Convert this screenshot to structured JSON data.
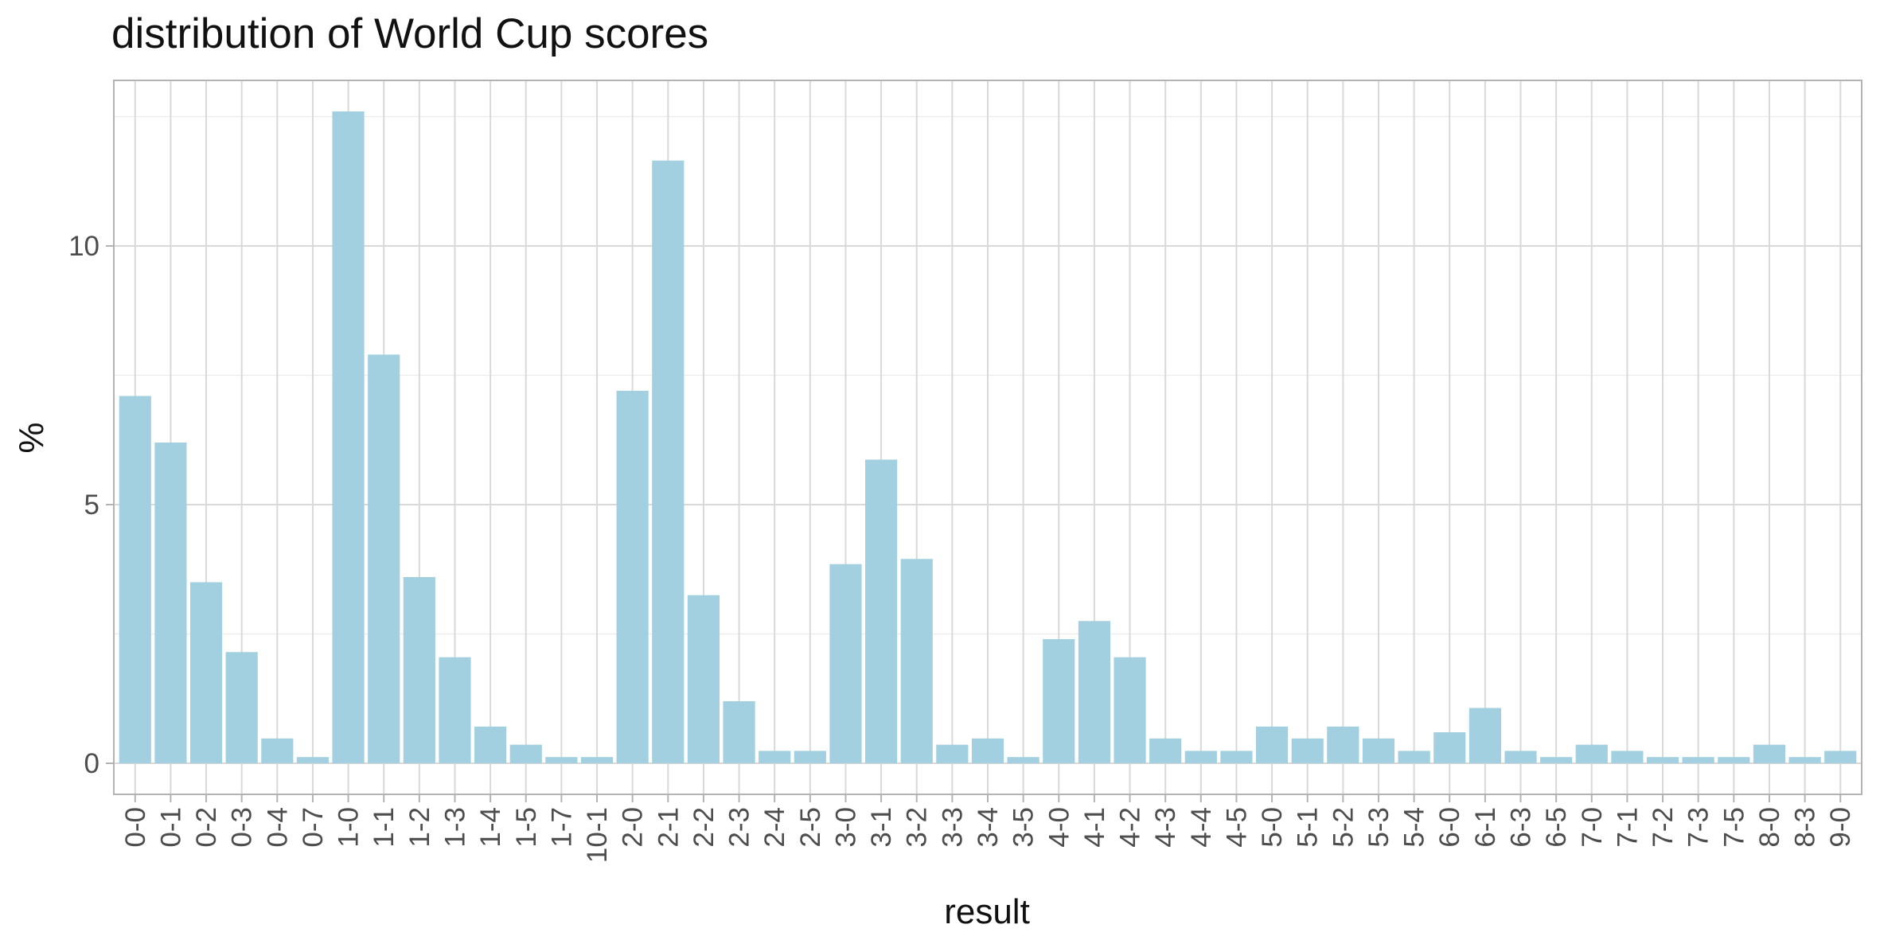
{
  "chart_data": {
    "type": "bar",
    "title": "distribution of World Cup scores",
    "xlabel": "result",
    "ylabel": "%",
    "categories": [
      "0-0",
      "0-1",
      "0-2",
      "0-3",
      "0-4",
      "0-7",
      "1-0",
      "1-1",
      "1-2",
      "1-3",
      "1-4",
      "1-5",
      "1-7",
      "10-1",
      "2-0",
      "2-1",
      "2-2",
      "2-3",
      "2-4",
      "2-5",
      "3-0",
      "3-1",
      "3-2",
      "3-3",
      "3-4",
      "3-5",
      "4-0",
      "4-1",
      "4-2",
      "4-3",
      "4-4",
      "4-5",
      "5-0",
      "5-1",
      "5-2",
      "5-3",
      "5-4",
      "6-0",
      "6-1",
      "6-3",
      "6-5",
      "7-0",
      "7-1",
      "7-2",
      "7-3",
      "7-5",
      "8-0",
      "8-3",
      "9-0"
    ],
    "values": [
      7.1,
      6.2,
      3.5,
      2.15,
      0.48,
      0.12,
      12.6,
      7.9,
      3.6,
      2.05,
      0.71,
      0.36,
      0.12,
      0.12,
      7.2,
      11.65,
      3.25,
      1.2,
      0.24,
      0.24,
      3.85,
      5.87,
      3.95,
      0.36,
      0.48,
      0.12,
      2.4,
      2.75,
      2.05,
      0.48,
      0.24,
      0.24,
      0.71,
      0.48,
      0.71,
      0.48,
      0.24,
      0.6,
      1.07,
      0.24,
      0.12,
      0.36,
      0.24,
      0.12,
      0.12,
      0.12,
      0.36,
      0.12,
      0.24
    ],
    "y_ticks": [
      0,
      5,
      10
    ],
    "ylim": [
      -0.6,
      13.2
    ],
    "grid": true,
    "legend": "none",
    "colors": {
      "bar": "#a2d0e0",
      "grid_major": "#d9d9d9",
      "grid_minor": "#ebebeb",
      "panel_border": "#b3b3b3",
      "tick_text": "#4d4d4d",
      "title_text": "#111111"
    }
  }
}
